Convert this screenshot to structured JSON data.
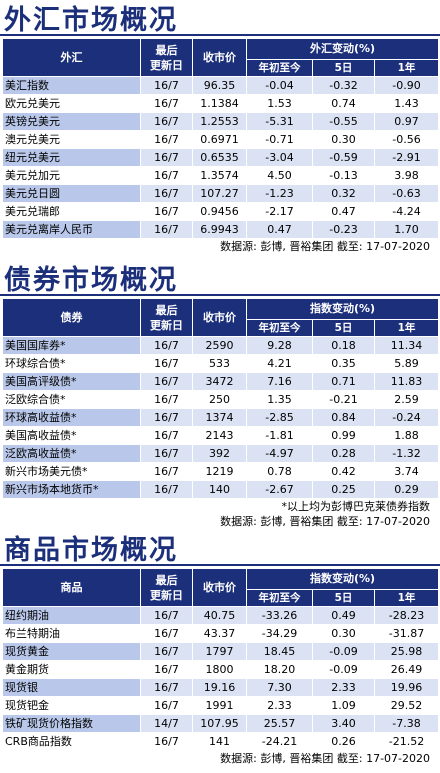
{
  "fx": {
    "title": "外汇市场概况",
    "headers": {
      "name": "外汇",
      "date": "最后\n更新日",
      "price": "收市价",
      "change": "外汇变动(%)",
      "ytd": "年初至今",
      "d5": "5日",
      "y1": "1年"
    },
    "rows": [
      {
        "name": "美汇指数",
        "date": "16/7",
        "price": "96.35",
        "ytd": "-0.04",
        "d5": "-0.32",
        "y1": "-0.90"
      },
      {
        "name": "欧元兑美元",
        "date": "16/7",
        "price": "1.1384",
        "ytd": "1.53",
        "d5": "0.74",
        "y1": "1.43"
      },
      {
        "name": "英镑兑美元",
        "date": "16/7",
        "price": "1.2553",
        "ytd": "-5.31",
        "d5": "-0.55",
        "y1": "0.97"
      },
      {
        "name": "澳元兑美元",
        "date": "16/7",
        "price": "0.6971",
        "ytd": "-0.71",
        "d5": "0.30",
        "y1": "-0.56"
      },
      {
        "name": "纽元兑美元",
        "date": "16/7",
        "price": "0.6535",
        "ytd": "-3.04",
        "d5": "-0.59",
        "y1": "-2.91"
      },
      {
        "name": "美元兑加元",
        "date": "16/7",
        "price": "1.3574",
        "ytd": "4.50",
        "d5": "-0.13",
        "y1": "3.98"
      },
      {
        "name": "美元兑日圆",
        "date": "16/7",
        "price": "107.27",
        "ytd": "-1.23",
        "d5": "0.32",
        "y1": "-0.63"
      },
      {
        "name": "美元兑瑞郎",
        "date": "16/7",
        "price": "0.9456",
        "ytd": "-2.17",
        "d5": "0.47",
        "y1": "-4.24"
      },
      {
        "name": "美元兑离岸人民币",
        "date": "16/7",
        "price": "6.9943",
        "ytd": "0.47",
        "d5": "-0.23",
        "y1": "1.70"
      }
    ],
    "source": "数据源: 彭博, 晋裕集团 截至: 17-07-2020"
  },
  "bonds": {
    "title": "债券市场概况",
    "headers": {
      "name": "债券",
      "date": "最后\n更新日",
      "price": "收市价",
      "change": "指数变动(%)",
      "ytd": "年初至今",
      "d5": "5日",
      "y1": "1年"
    },
    "rows": [
      {
        "name": "美国国库券*",
        "date": "16/7",
        "price": "2590",
        "ytd": "9.28",
        "d5": "0.18",
        "y1": "11.34"
      },
      {
        "name": "环球综合债*",
        "date": "16/7",
        "price": "533",
        "ytd": "4.21",
        "d5": "0.35",
        "y1": "5.89"
      },
      {
        "name": "美国高评级债*",
        "date": "16/7",
        "price": "3472",
        "ytd": "7.16",
        "d5": "0.71",
        "y1": "11.83"
      },
      {
        "name": "泛欧综合债*",
        "date": "16/7",
        "price": "250",
        "ytd": "1.35",
        "d5": "-0.21",
        "y1": "2.59"
      },
      {
        "name": "环球高收益债*",
        "date": "16/7",
        "price": "1374",
        "ytd": "-2.85",
        "d5": "0.84",
        "y1": "-0.24"
      },
      {
        "name": "美国高收益债*",
        "date": "16/7",
        "price": "2143",
        "ytd": "-1.81",
        "d5": "0.99",
        "y1": "1.88"
      },
      {
        "name": "泛欧高收益债*",
        "date": "16/7",
        "price": "392",
        "ytd": "-4.97",
        "d5": "0.28",
        "y1": "-1.32"
      },
      {
        "name": "新兴市场美元债*",
        "date": "16/7",
        "price": "1219",
        "ytd": "0.78",
        "d5": "0.42",
        "y1": "3.74"
      },
      {
        "name": "新兴市场本地货币*",
        "date": "16/7",
        "price": "140",
        "ytd": "-2.67",
        "d5": "0.25",
        "y1": "0.29"
      }
    ],
    "note": "*以上均为彭博巴克莱债券指数",
    "source": "数据源: 彭博, 晋裕集团 截至: 17-07-2020"
  },
  "commodities": {
    "title": "商品市场概况",
    "headers": {
      "name": "商品",
      "date": "最后\n更新日",
      "price": "收市价",
      "change": "指数变动(%)",
      "ytd": "年初至今",
      "d5": "5日",
      "y1": "1年"
    },
    "rows": [
      {
        "name": "纽约期油",
        "date": "16/7",
        "price": "40.75",
        "ytd": "-33.26",
        "d5": "0.49",
        "y1": "-28.23"
      },
      {
        "name": "布兰特期油",
        "date": "16/7",
        "price": "43.37",
        "ytd": "-34.29",
        "d5": "0.30",
        "y1": "-31.87"
      },
      {
        "name": "现货黄金",
        "date": "16/7",
        "price": "1797",
        "ytd": "18.45",
        "d5": "-0.09",
        "y1": "25.98"
      },
      {
        "name": "黄金期货",
        "date": "16/7",
        "price": "1800",
        "ytd": "18.20",
        "d5": "-0.09",
        "y1": "26.49"
      },
      {
        "name": "现货银",
        "date": "16/7",
        "price": "19.16",
        "ytd": "7.30",
        "d5": "2.33",
        "y1": "19.96"
      },
      {
        "name": "现货钯金",
        "date": "16/7",
        "price": "1991",
        "ytd": "2.33",
        "d5": "1.09",
        "y1": "29.52"
      },
      {
        "name": "铁矿现货价格指数",
        "date": "14/7",
        "price": "107.95",
        "ytd": "25.57",
        "d5": "3.40",
        "y1": "-7.38"
      },
      {
        "name": "CRB商品指数",
        "date": "16/7",
        "price": "141",
        "ytd": "-24.21",
        "d5": "0.26",
        "y1": "-21.52"
      }
    ],
    "source": "数据源: 彭博, 晋裕集团 截至: 17-07-2020"
  },
  "colors": {
    "header_bg": "#1c2f7a",
    "row_alt": "#dbe2f3",
    "name_highlight": "#b9c8ea"
  }
}
